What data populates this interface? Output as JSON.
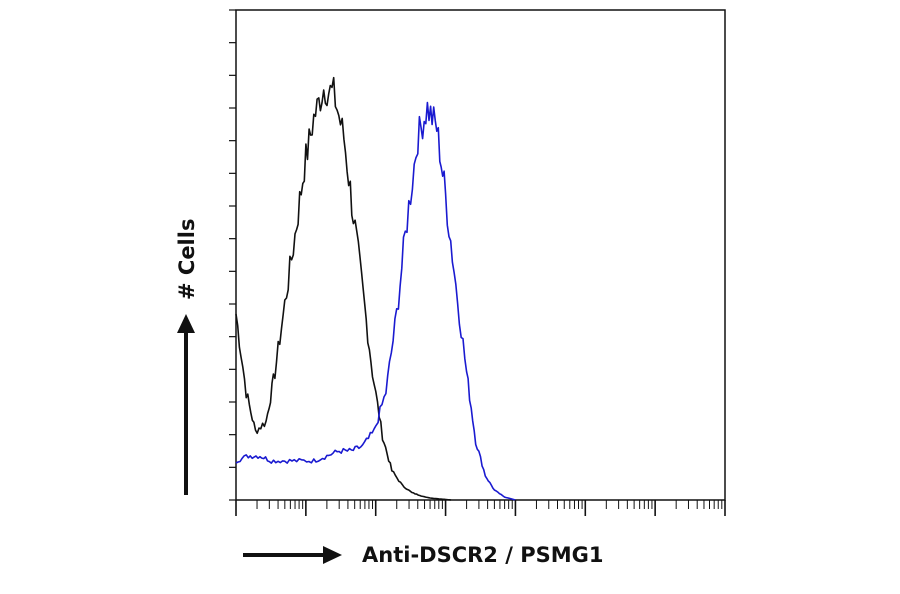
{
  "chart_data": {
    "type": "area",
    "xlabel": "Anti-DSCR2 / PSMG1",
    "ylabel": "# Cells",
    "x_scale": "log",
    "xlim": [
      1,
      10000000
    ],
    "ylim": [
      0,
      100
    ],
    "grid": false,
    "legend": "none",
    "series": [
      {
        "color": "#111111",
        "x": [
          1,
          1.4,
          1.9,
          2.7,
          3.6,
          5,
          7,
          9.5,
          13,
          18,
          25,
          35,
          48,
          66,
          90,
          125,
          170,
          240,
          330,
          450,
          600,
          850,
          1200
        ],
        "y": [
          38,
          22,
          14,
          16,
          26,
          40,
          54,
          68,
          78,
          84,
          83,
          74,
          58,
          42,
          26,
          13,
          6,
          3,
          1.5,
          0.8,
          0.4,
          0.2,
          0
        ]
      },
      {
        "color": "#1a1ad0",
        "x": [
          1,
          1.5,
          2.2,
          3.2,
          5,
          8,
          13,
          20,
          30,
          45,
          65,
          95,
          140,
          200,
          280,
          400,
          550,
          750,
          1000,
          1400,
          2000,
          2700,
          3700,
          5000,
          7000,
          10000
        ],
        "y": [
          8,
          9,
          9,
          8,
          8,
          8,
          8,
          9,
          10,
          10,
          11,
          14,
          22,
          38,
          57,
          74,
          80,
          76,
          62,
          44,
          26,
          12,
          5,
          2,
          0.6,
          0
        ]
      }
    ]
  }
}
